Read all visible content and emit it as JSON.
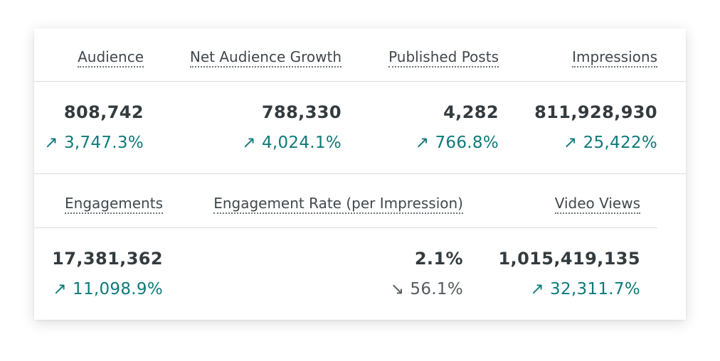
{
  "colors": {
    "positive": "#0e7a7a",
    "negative": "#555c60",
    "value": "#343b3f"
  },
  "row1": [
    {
      "label": "Audience",
      "value": "808,742",
      "change": "3,747.3%",
      "direction": "up"
    },
    {
      "label": "Net Audience Growth",
      "value": "788,330",
      "change": "4,024.1%",
      "direction": "up"
    },
    {
      "label": "Published Posts",
      "value": "4,282",
      "change": "766.8%",
      "direction": "up"
    },
    {
      "label": "Impressions",
      "value": "811,928,930",
      "change": "25,422%",
      "direction": "up"
    }
  ],
  "row2": [
    {
      "label": "Engagements",
      "value": "17,381,362",
      "change": "11,098.9%",
      "direction": "up"
    },
    {
      "label": "Engagement Rate (per Impression)",
      "value": "2.1%",
      "change": "56.1%",
      "direction": "down"
    },
    {
      "label": "Video Views",
      "value": "1,015,419,135",
      "change": "32,311.7%",
      "direction": "up"
    }
  ],
  "icons": {
    "up": "arrow-up-right-icon",
    "down": "arrow-down-right-icon"
  },
  "glyphs": {
    "up": "↗",
    "down": "↘"
  }
}
